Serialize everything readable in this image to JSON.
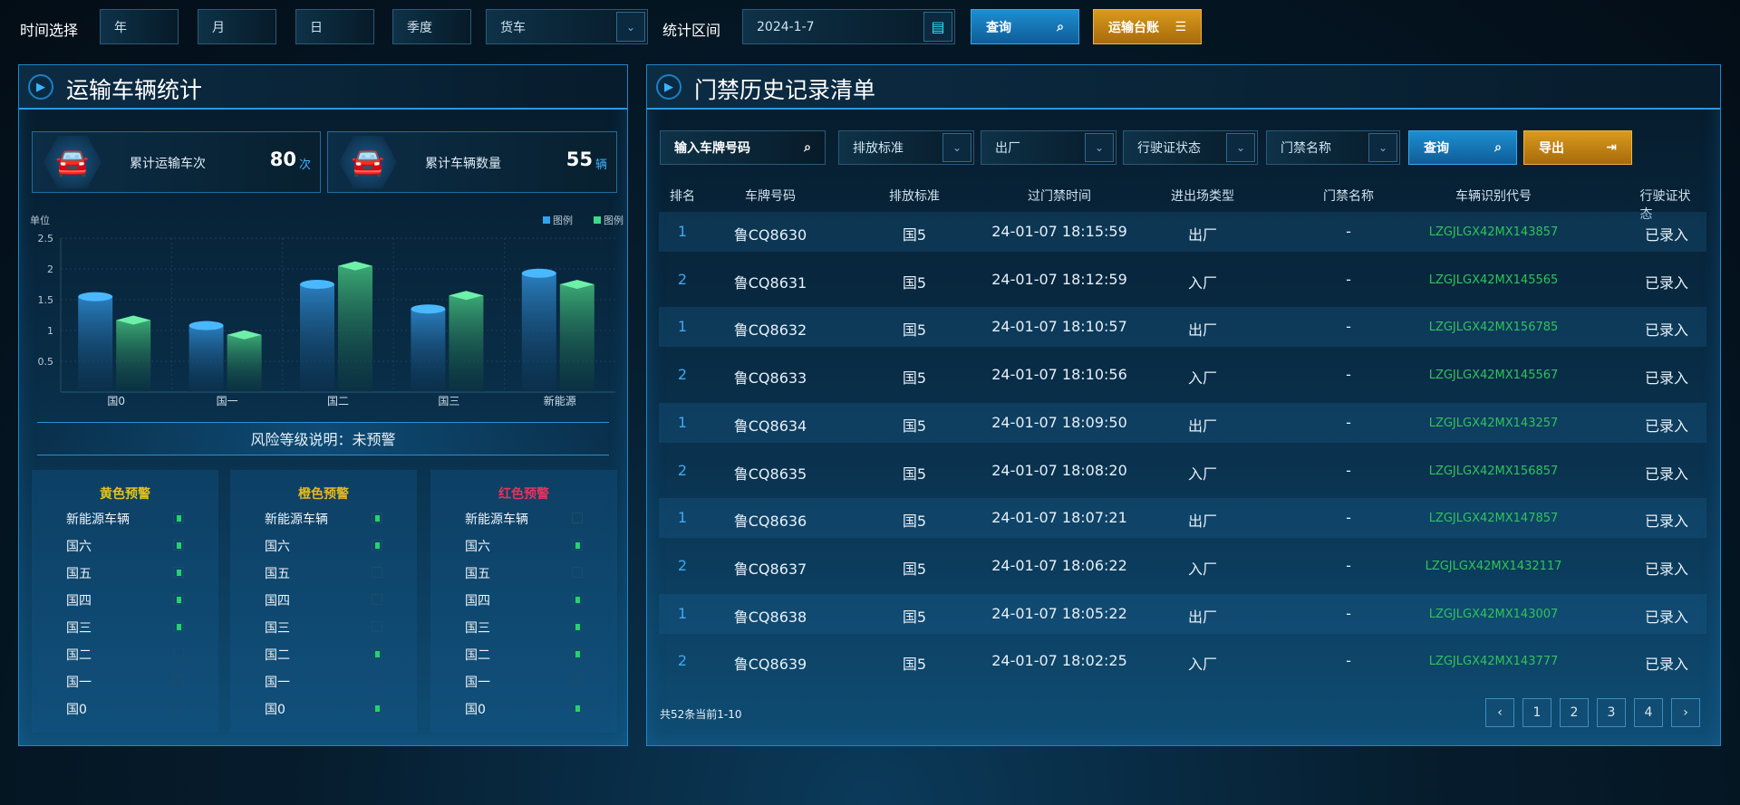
{
  "topbar": {
    "time_label": "时间选择",
    "year": "年",
    "month": "月",
    "day": "日",
    "quarter": "季度",
    "vehicle_type": "货车",
    "range_label": "统计区间",
    "date": "2024-1-7",
    "query": "查询",
    "ledger": "运输台账"
  },
  "left": {
    "title": "运输车辆统计",
    "stats": [
      {
        "label": "累计运输车次",
        "value": "80",
        "unit": "次"
      },
      {
        "label": "累计车辆数量",
        "value": "55",
        "unit": "辆"
      }
    ],
    "risk_text": "风险等级说明：未预警",
    "risk_columns": [
      {
        "title": "黄色预警",
        "color": "#e6c21e",
        "items": [
          {
            "label": "新能源车辆",
            "on": true
          },
          {
            "label": "国六",
            "on": true
          },
          {
            "label": "国五",
            "on": true
          },
          {
            "label": "国四",
            "on": true
          },
          {
            "label": "国三",
            "on": true
          },
          {
            "label": "国二",
            "on": false
          },
          {
            "label": "国一",
            "on": false
          },
          {
            "label": "国0",
            "on": false
          }
        ]
      },
      {
        "title": "橙色预警",
        "color": "#e6b81e",
        "items": [
          {
            "label": "新能源车辆",
            "on": true
          },
          {
            "label": "国六",
            "on": true
          },
          {
            "label": "国五",
            "on": false
          },
          {
            "label": "国四",
            "on": false
          },
          {
            "label": "国三",
            "on": false
          },
          {
            "label": "国二",
            "on": true
          },
          {
            "label": "国一",
            "on": false
          },
          {
            "label": "国0",
            "on": true
          }
        ]
      },
      {
        "title": "红色预警",
        "color": "#e8325a",
        "items": [
          {
            "label": "新能源车辆",
            "on": false
          },
          {
            "label": "国六",
            "on": true
          },
          {
            "label": "国五",
            "on": false
          },
          {
            "label": "国四",
            "on": true
          },
          {
            "label": "国三",
            "on": true
          },
          {
            "label": "国二",
            "on": true
          },
          {
            "label": "国一",
            "on": false
          },
          {
            "label": "国0",
            "on": true
          }
        ]
      }
    ]
  },
  "chart_data": {
    "type": "bar",
    "ylabel": "单位",
    "categories": [
      "国0",
      "国一",
      "国二",
      "国三",
      "新能源"
    ],
    "ylim": [
      0,
      2.5
    ],
    "yticks": [
      "2.5",
      "2",
      "1.5",
      "1",
      "0.5"
    ],
    "grid": true,
    "legend": "top-right",
    "series": [
      {
        "name": "图例",
        "color": "#2fa4f0",
        "values": [
          1.55,
          1.08,
          1.75,
          1.35,
          1.93
        ]
      },
      {
        "name": "图例",
        "color": "#3fd88a",
        "values": [
          1.17,
          0.93,
          2.05,
          1.57,
          1.75
        ]
      }
    ]
  },
  "right": {
    "title": "门禁历史记录清单",
    "filters": {
      "plate_placeholder": "输入车牌号码",
      "emission": "排放标准",
      "direction": "出厂",
      "license_status": "行驶证状态",
      "gate_name": "门禁名称",
      "query": "查询",
      "export": "导出"
    },
    "columns": [
      "排名",
      "车牌号码",
      "排放标准",
      "过门禁时间",
      "进出场类型",
      "门禁名称",
      "车辆识别代号",
      "行驶证状态"
    ],
    "rows": [
      [
        "1",
        "鲁CQ8630",
        "国5",
        "24-01-07 18:15:59",
        "出厂",
        "-",
        "LZGJLGX42MX143857",
        "已录入"
      ],
      [
        "2",
        "鲁CQ8631",
        "国5",
        "24-01-07 18:12:59",
        "入厂",
        "-",
        "LZGJLGX42MX145565",
        "已录入"
      ],
      [
        "1",
        "鲁CQ8632",
        "国5",
        "24-01-07 18:10:57",
        "出厂",
        "-",
        "LZGJLGX42MX156785",
        "已录入"
      ],
      [
        "2",
        "鲁CQ8633",
        "国5",
        "24-01-07 18:10:56",
        "入厂",
        "-",
        "LZGJLGX42MX145567",
        "已录入"
      ],
      [
        "1",
        "鲁CQ8634",
        "国5",
        "24-01-07 18:09:50",
        "出厂",
        "-",
        "LZGJLGX42MX143257",
        "已录入"
      ],
      [
        "2",
        "鲁CQ8635",
        "国5",
        "24-01-07 18:08:20",
        "入厂",
        "-",
        "LZGJLGX42MX156857",
        "已录入"
      ],
      [
        "1",
        "鲁CQ8636",
        "国5",
        "24-01-07 18:07:21",
        "出厂",
        "-",
        "LZGJLGX42MX147857",
        "已录入"
      ],
      [
        "2",
        "鲁CQ8637",
        "国5",
        "24-01-07 18:06:22",
        "入厂",
        "-",
        "LZGJLGX42MX1432117",
        "已录入"
      ],
      [
        "1",
        "鲁CQ8638",
        "国5",
        "24-01-07 18:05:22",
        "出厂",
        "-",
        "LZGJLGX42MX143007",
        "已录入"
      ],
      [
        "2",
        "鲁CQ8639",
        "国5",
        "24-01-07 18:02:25",
        "入厂",
        "-",
        "LZGJLGX42MX143777",
        "已录入"
      ]
    ],
    "summary": "共52条当前1-10",
    "pagination": {
      "prev": "‹",
      "pages": [
        "1",
        "2",
        "3",
        "4"
      ],
      "next": "›"
    }
  }
}
